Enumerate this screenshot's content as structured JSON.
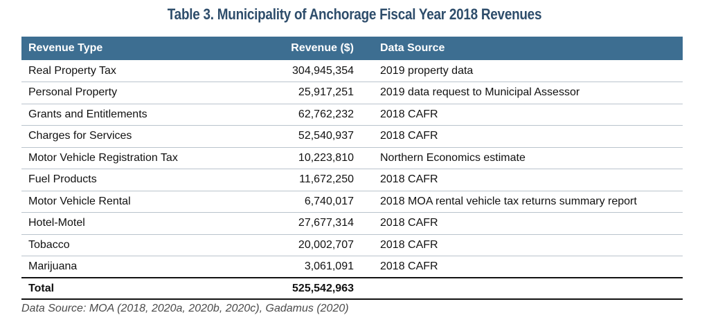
{
  "title": "Table 3. Municipality of Anchorage Fiscal Year 2018 Revenues",
  "headers": {
    "type": "Revenue Type",
    "revenue": "Revenue ($)",
    "source": "Data Source"
  },
  "rows": [
    {
      "type": "Real Property Tax",
      "revenue": "304,945,354",
      "source": "2019 property data"
    },
    {
      "type": "Personal Property",
      "revenue": "25,917,251",
      "source": "2019 data request to Municipal Assessor"
    },
    {
      "type": "Grants and Entitlements",
      "revenue": "62,762,232",
      "source": "2018 CAFR"
    },
    {
      "type": "Charges for Services",
      "revenue": "52,540,937",
      "source": "2018 CAFR"
    },
    {
      "type": "Motor Vehicle Registration Tax",
      "revenue": "10,223,810",
      "source": "Northern Economics estimate"
    },
    {
      "type": "Fuel Products",
      "revenue": "11,672,250",
      "source": "2018 CAFR"
    },
    {
      "type": "Motor Vehicle Rental",
      "revenue": "6,740,017",
      "source": "2018 MOA rental vehicle tax returns summary report"
    },
    {
      "type": "Hotel-Motel",
      "revenue": "27,677,314",
      "source": "2018 CAFR"
    },
    {
      "type": "Tobacco",
      "revenue": "20,002,707",
      "source": "2018 CAFR"
    },
    {
      "type": "Marijuana",
      "revenue": "3,061,091",
      "source": "2018 CAFR"
    }
  ],
  "total": {
    "label": "Total",
    "revenue": "525,542,963",
    "source": ""
  },
  "note": "Data Source: MOA (2018, 2020a, 2020b, 2020c), Gadamus (2020)",
  "colors": {
    "title": "#2e4d6b",
    "header_bg": "#3d6e91",
    "header_text": "#ffffff"
  }
}
